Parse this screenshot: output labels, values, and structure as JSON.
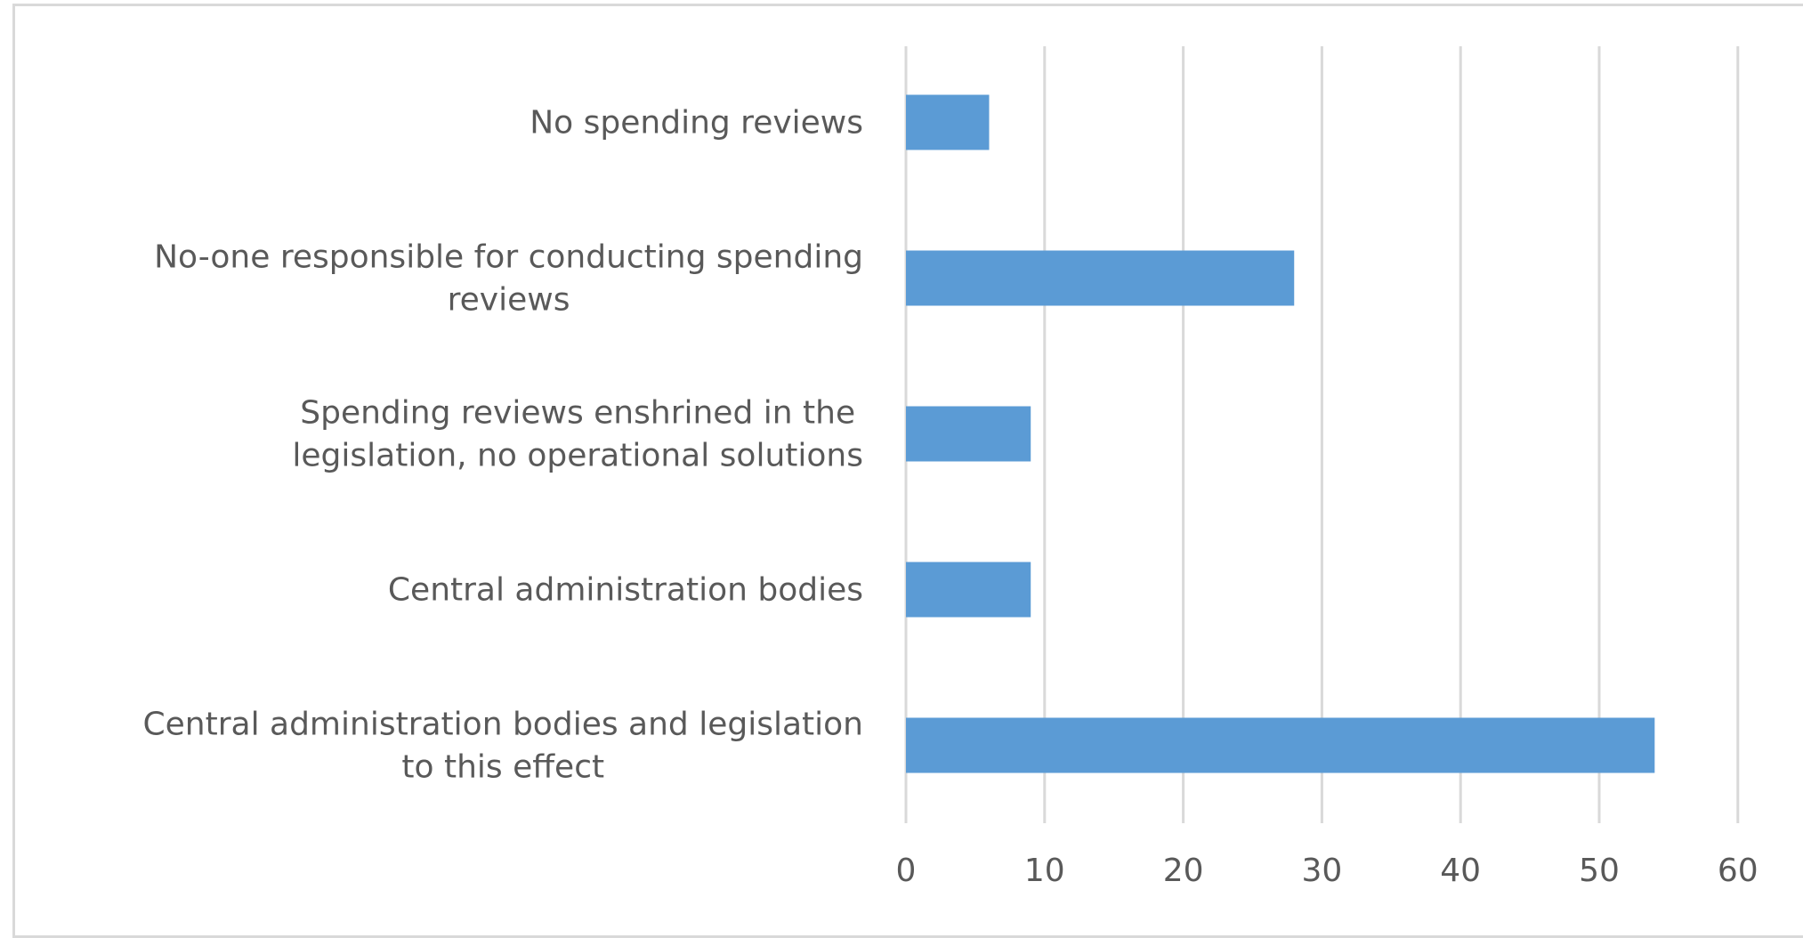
{
  "chart_data": {
    "type": "bar",
    "orientation": "horizontal",
    "title": "",
    "xlabel": "",
    "ylabel": "",
    "categories": [
      "No spending reviews",
      "No-one responsible for conducting spending reviews",
      "Spending reviews enshrined in the legislation, no operational solutions",
      "Central administration bodies",
      "Central administration bodies and legislation to this effect"
    ],
    "category_lines": [
      [
        "No spending reviews"
      ],
      [
        "No-one responsible for conducting spending",
        "reviews"
      ],
      [
        "Spending reviews enshrined in the",
        "legislation, no operational solutions"
      ],
      [
        "Central administration bodies"
      ],
      [
        "Central administration bodies and legislation",
        "to this effect"
      ]
    ],
    "values": [
      6,
      28,
      9,
      9,
      54
    ],
    "xlim": [
      0,
      60
    ],
    "xticks": [
      0,
      10,
      20,
      30,
      40,
      50,
      60
    ],
    "grid": true,
    "legend": "none",
    "bar_color": "#5b9bd5",
    "grid_color": "#d9d9d9",
    "text_color": "#595959"
  }
}
